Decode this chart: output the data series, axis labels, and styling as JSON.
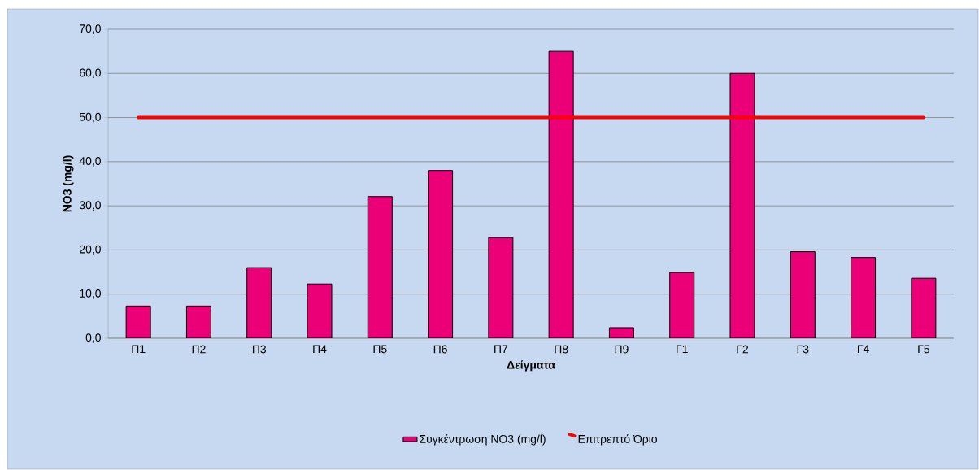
{
  "chart_data": {
    "type": "bar",
    "xlabel": "Δείγματα",
    "ylabel": "NO3 (mg/l)",
    "categories": [
      "Π1",
      "Π2",
      "Π3",
      "Π4",
      "Π5",
      "Π6",
      "Π7",
      "Π8",
      "Π9",
      "Γ1",
      "Γ2",
      "Γ3",
      "Γ4",
      "Γ5"
    ],
    "series": [
      {
        "name": "Συγκέντρωση NO3 (mg/l)",
        "color": "#ec0077",
        "values": [
          7.3,
          7.3,
          16.0,
          12.3,
          32.1,
          38.0,
          22.8,
          65.0,
          2.4,
          14.9,
          60.0,
          19.6,
          18.3,
          13.6
        ]
      },
      {
        "name": "Επιτρεπτό Όριο",
        "type": "line",
        "color": "#ff0000",
        "values": [
          50,
          50,
          50,
          50,
          50,
          50,
          50,
          50,
          50,
          50,
          50,
          50,
          50,
          50
        ]
      }
    ],
    "ylim": [
      0,
      70
    ],
    "yticks": [
      {
        "value": 0,
        "label": "0,0"
      },
      {
        "value": 10,
        "label": "10,0"
      },
      {
        "value": 20,
        "label": "20,0"
      },
      {
        "value": 30,
        "label": "30,0"
      },
      {
        "value": 40,
        "label": "40,0"
      },
      {
        "value": 50,
        "label": "50,0"
      },
      {
        "value": 60,
        "label": "60,0"
      },
      {
        "value": 70,
        "label": "70,0"
      }
    ],
    "grid": "y",
    "legend": "bottom",
    "marker": "none",
    "line_style": "solid"
  }
}
